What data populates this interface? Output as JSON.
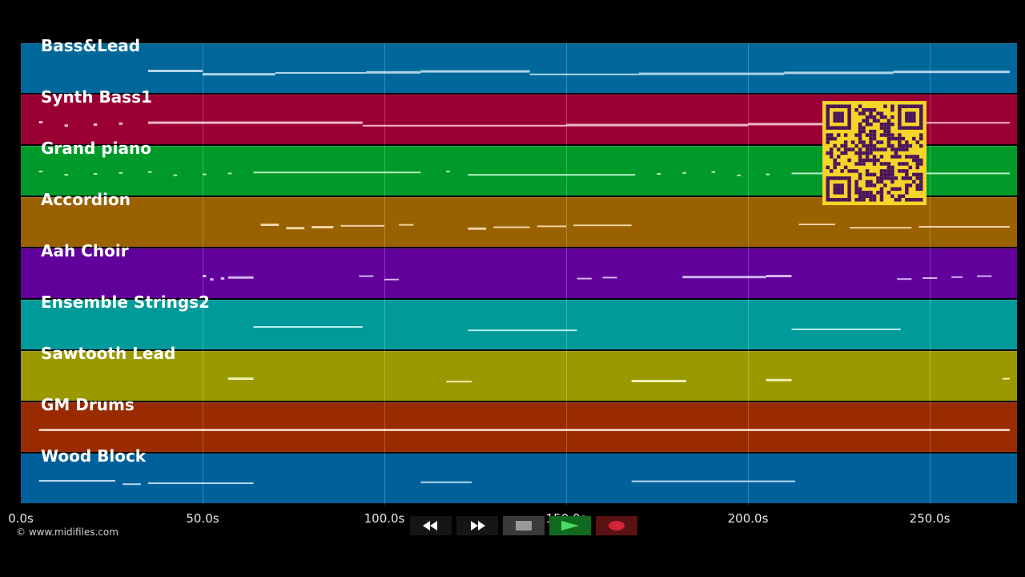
{
  "tracks": [
    {
      "name": "Bass&Lead",
      "color": "#00679b",
      "note_color": "#cfe6f5",
      "notes": [
        [
          35,
          50,
          3
        ],
        [
          50,
          70,
          3
        ],
        [
          70,
          95,
          2
        ],
        [
          95,
          110,
          3
        ],
        [
          110,
          140,
          3
        ],
        [
          140,
          170,
          2
        ],
        [
          170,
          210,
          3
        ],
        [
          210,
          240,
          3
        ],
        [
          240,
          272,
          3
        ]
      ]
    },
    {
      "name": "Synth Bass1",
      "color": "#9a0033",
      "note_color": "#ffd7e4",
      "notes": [
        [
          5,
          6,
          3
        ],
        [
          12,
          13,
          3
        ],
        [
          20,
          21,
          3
        ],
        [
          27,
          28,
          3
        ],
        [
          35,
          94,
          3
        ],
        [
          94,
          150,
          2
        ],
        [
          150,
          200,
          3
        ],
        [
          200,
          244,
          3
        ],
        [
          244,
          272,
          2
        ]
      ]
    },
    {
      "name": "Grand piano",
      "color": "#009a2a",
      "note_color": "#d4ffde",
      "notes": [
        [
          5,
          6,
          2
        ],
        [
          12,
          13,
          2
        ],
        [
          20,
          21,
          2
        ],
        [
          27,
          28,
          2
        ],
        [
          35,
          36,
          2
        ],
        [
          42,
          43,
          2
        ],
        [
          50,
          51,
          2
        ],
        [
          57,
          58,
          2
        ],
        [
          64,
          110,
          2
        ],
        [
          117,
          118,
          2
        ],
        [
          123,
          169,
          2
        ],
        [
          175,
          176,
          2
        ],
        [
          182,
          183,
          2
        ],
        [
          190,
          191,
          2
        ],
        [
          197,
          198,
          2
        ],
        [
          205,
          206,
          2
        ],
        [
          212,
          272,
          2
        ]
      ]
    },
    {
      "name": "Accordion",
      "color": "#9a6100",
      "note_color": "#ffe7c2",
      "notes": [
        [
          66,
          71,
          3
        ],
        [
          73,
          78,
          3
        ],
        [
          80,
          86,
          3
        ],
        [
          88,
          100,
          2
        ],
        [
          104,
          108,
          2
        ],
        [
          123,
          128,
          3
        ],
        [
          130,
          140,
          2
        ],
        [
          142,
          150,
          2
        ],
        [
          152,
          168,
          2
        ],
        [
          214,
          224,
          2
        ],
        [
          228,
          245,
          2
        ],
        [
          247,
          272,
          2
        ]
      ]
    },
    {
      "name": "Aah Choir",
      "color": "#61009a",
      "note_color": "#ead2ff",
      "notes": [
        [
          50,
          51,
          3
        ],
        [
          52,
          53,
          3
        ],
        [
          55,
          56,
          3
        ],
        [
          57,
          64,
          3
        ],
        [
          93,
          97,
          2
        ],
        [
          100,
          104,
          2
        ],
        [
          153,
          157,
          2
        ],
        [
          160,
          164,
          2
        ],
        [
          182,
          205,
          3
        ],
        [
          205,
          212,
          3
        ],
        [
          241,
          245,
          2
        ],
        [
          248,
          252,
          2
        ],
        [
          256,
          259,
          2
        ],
        [
          263,
          267,
          2
        ]
      ]
    },
    {
      "name": "Ensemble Strings2",
      "color": "#009a9a",
      "note_color": "#d2fbfb",
      "notes": [
        [
          64,
          94,
          2
        ],
        [
          123,
          153,
          2
        ],
        [
          212,
          242,
          2
        ]
      ]
    },
    {
      "name": "Sawtooth Lead",
      "color": "#9a9a00",
      "note_color": "#ffffd0",
      "notes": [
        [
          57,
          64,
          3
        ],
        [
          117,
          124,
          2
        ],
        [
          168,
          183,
          3
        ],
        [
          205,
          212,
          3
        ],
        [
          270,
          272,
          2
        ]
      ]
    },
    {
      "name": "GM Drums",
      "color": "#9a2a00",
      "note_color": "#ffe0d2",
      "notes": [
        [
          5,
          272,
          3
        ]
      ]
    },
    {
      "name": "Wood Block",
      "color": "#00619a",
      "note_color": "#d6ecff",
      "notes": [
        [
          5,
          26,
          2
        ],
        [
          28,
          33,
          2
        ],
        [
          35,
          64,
          2
        ],
        [
          110,
          124,
          2
        ],
        [
          168,
          213,
          2
        ]
      ]
    }
  ],
  "timeline": {
    "max_seconds": 274,
    "ticks": [
      {
        "value": 0,
        "label": "0.0s"
      },
      {
        "value": 50,
        "label": "50.0s"
      },
      {
        "value": 100,
        "label": "100.0s"
      },
      {
        "value": 150,
        "label": "150.0s"
      },
      {
        "value": 200,
        "label": "200.0s"
      },
      {
        "value": 250,
        "label": "250.0s"
      }
    ]
  },
  "footer": {
    "copyright": "© www.midifiles.com"
  },
  "controls": {
    "rewind_icon": "rewind-icon",
    "fast_forward_icon": "fast-forward-icon",
    "stop_icon": "stop-icon",
    "play_icon": "play-icon",
    "record_icon": "record-icon",
    "colors": {
      "rewind_bg": "#151515",
      "stop_bg": "#3a3a3a",
      "stop_fg": "#9a9a9a",
      "play_bg": "#0f6a1f",
      "play_fg": "#4cd964",
      "record_bg": "#5a1212",
      "record_fg": "#d2243a"
    }
  },
  "qr_code": {
    "fg": "#4a145c",
    "bg": "#f6d42a"
  }
}
